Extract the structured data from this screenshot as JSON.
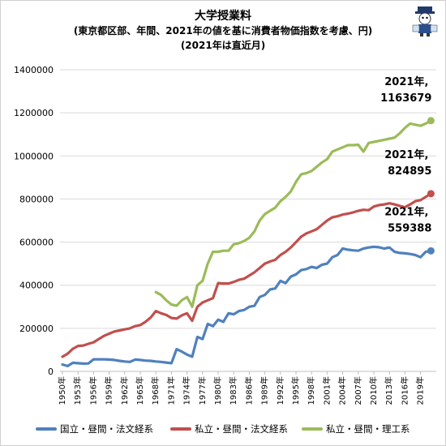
{
  "header": {
    "title": "大学授業料",
    "subtitle": "(東京都区部、年間、2021年の値を基に消費者物価指数を考慮、円)",
    "note": "(2021年は直近月)"
  },
  "chart_data": {
    "type": "line",
    "ylim": [
      0,
      1400000
    ],
    "yticks": [
      "0",
      "200000",
      "400000",
      "600000",
      "800000",
      "1000000",
      "1200000",
      "1400000"
    ],
    "x_tick_labels": [
      "1950年",
      "1953年",
      "1956年",
      "1959年",
      "1962年",
      "1965年",
      "1968年",
      "1971年",
      "1974年",
      "1977年",
      "1980年",
      "1983年",
      "1986年",
      "1989年",
      "1992年",
      "1995年",
      "1998年",
      "2001年",
      "2004年",
      "2007年",
      "2010年",
      "2013年",
      "2016年",
      "2019年"
    ],
    "x": [
      1950,
      1951,
      1952,
      1953,
      1954,
      1955,
      1956,
      1957,
      1958,
      1959,
      1960,
      1961,
      1962,
      1963,
      1964,
      1965,
      1966,
      1967,
      1968,
      1969,
      1970,
      1971,
      1972,
      1973,
      1974,
      1975,
      1976,
      1977,
      1978,
      1979,
      1980,
      1981,
      1982,
      1983,
      1984,
      1985,
      1986,
      1987,
      1988,
      1989,
      1990,
      1991,
      1992,
      1993,
      1994,
      1995,
      1996,
      1997,
      1998,
      1999,
      2000,
      2001,
      2002,
      2003,
      2004,
      2005,
      2006,
      2007,
      2008,
      2009,
      2010,
      2011,
      2012,
      2013,
      2014,
      2015,
      2016,
      2017,
      2018,
      2019,
      2020,
      2021
    ],
    "grid": true,
    "legend_position": "bottom",
    "series": [
      {
        "name": "国立・昼間・法文経系",
        "color": "#4f81bd",
        "values": [
          32000,
          25000,
          40000,
          38000,
          36000,
          37000,
          56000,
          56000,
          56000,
          55000,
          53000,
          49000,
          46000,
          44000,
          55000,
          53000,
          50000,
          49000,
          46000,
          44000,
          41000,
          38000,
          103000,
          92000,
          78000,
          68000,
          160000,
          150000,
          220000,
          210000,
          240000,
          230000,
          270000,
          265000,
          280000,
          285000,
          300000,
          305000,
          345000,
          355000,
          380000,
          385000,
          420000,
          410000,
          440000,
          450000,
          470000,
          475000,
          485000,
          480000,
          495000,
          500000,
          530000,
          540000,
          570000,
          565000,
          562000,
          560000,
          570000,
          575000,
          578000,
          576000,
          570000,
          575000,
          555000,
          550000,
          548000,
          545000,
          540000,
          530000,
          555000,
          559388
        ]
      },
      {
        "name": "私立・昼間・法文経系",
        "color": "#c0504d",
        "values": [
          68000,
          82000,
          105000,
          118000,
          120000,
          128000,
          135000,
          150000,
          165000,
          175000,
          185000,
          190000,
          195000,
          200000,
          210000,
          215000,
          230000,
          250000,
          280000,
          270000,
          262000,
          248000,
          245000,
          260000,
          270000,
          235000,
          300000,
          320000,
          330000,
          340000,
          410000,
          408000,
          408000,
          415000,
          425000,
          430000,
          445000,
          460000,
          480000,
          500000,
          510000,
          518000,
          540000,
          555000,
          575000,
          600000,
          625000,
          640000,
          650000,
          660000,
          680000,
          700000,
          715000,
          720000,
          728000,
          732000,
          738000,
          745000,
          750000,
          748000,
          765000,
          772000,
          775000,
          780000,
          775000,
          768000,
          762000,
          775000,
          790000,
          795000,
          810000,
          824895
        ]
      },
      {
        "name": "私立・昼間・理工系",
        "color": "#9bbb59",
        "values": [
          null,
          null,
          null,
          null,
          null,
          null,
          null,
          null,
          null,
          null,
          null,
          null,
          null,
          null,
          null,
          null,
          null,
          null,
          368000,
          355000,
          330000,
          310000,
          305000,
          330000,
          345000,
          300000,
          400000,
          420000,
          500000,
          555000,
          555000,
          560000,
          560000,
          590000,
          595000,
          605000,
          620000,
          650000,
          700000,
          730000,
          745000,
          760000,
          790000,
          810000,
          835000,
          880000,
          915000,
          920000,
          930000,
          950000,
          970000,
          985000,
          1020000,
          1030000,
          1040000,
          1050000,
          1050000,
          1052000,
          1020000,
          1060000,
          1065000,
          1070000,
          1075000,
          1080000,
          1085000,
          1105000,
          1130000,
          1150000,
          1145000,
          1140000,
          1150000,
          1163679
        ]
      }
    ],
    "annotations": [
      {
        "line1": "2021年,",
        "line2": "1163679",
        "series": 2
      },
      {
        "line1": "2021年,",
        "line2": "824895",
        "series": 1
      },
      {
        "line1": "2021年,",
        "line2": "559388",
        "series": 0
      }
    ]
  }
}
